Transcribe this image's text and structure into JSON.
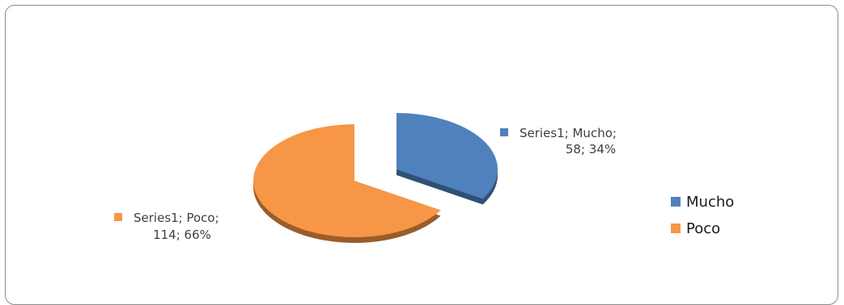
{
  "chart_data": {
    "type": "pie",
    "series_name": "Series1",
    "categories": [
      "Mucho",
      "Poco"
    ],
    "values": [
      58,
      114
    ],
    "percentages": [
      "34%",
      "66%"
    ],
    "colors": [
      "#4f81bd",
      "#f79646"
    ],
    "legend_position": "right",
    "data_labels": [
      {
        "line1": "Series1; Mucho;",
        "line2": "58; 34%"
      },
      {
        "line1": "Series1; Poco;",
        "line2": "114; 66%"
      }
    ],
    "legend": [
      "Mucho",
      "Poco"
    ]
  }
}
